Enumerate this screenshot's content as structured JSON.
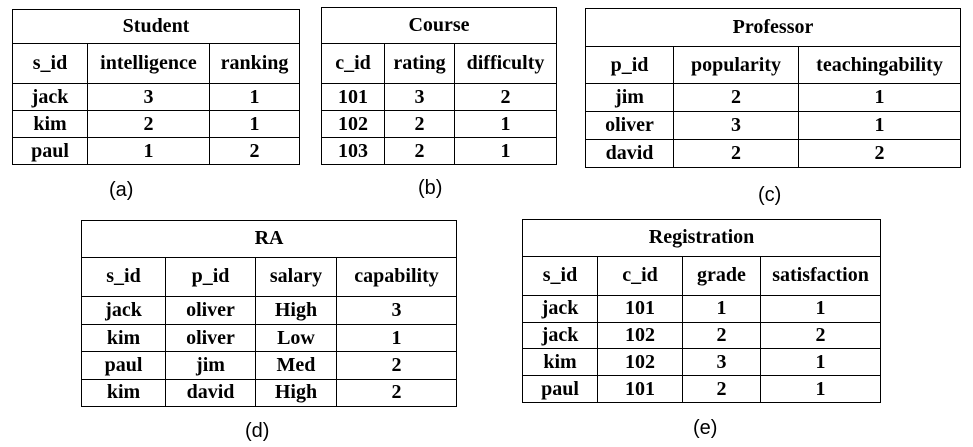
{
  "tables": {
    "student": {
      "title": "Student",
      "headers": [
        "s_id",
        "intelligence",
        "ranking"
      ],
      "rows": [
        [
          "jack",
          "3",
          "1"
        ],
        [
          "kim",
          "2",
          "1"
        ],
        [
          "paul",
          "1",
          "2"
        ]
      ],
      "caption": "(a)"
    },
    "course": {
      "title": "Course",
      "headers": [
        "c_id",
        "rating",
        "difficulty"
      ],
      "rows": [
        [
          "101",
          "3",
          "2"
        ],
        [
          "102",
          "2",
          "1"
        ],
        [
          "103",
          "2",
          "1"
        ]
      ],
      "caption": "(b)"
    },
    "professor": {
      "title": "Professor",
      "headers": [
        "p_id",
        "popularity",
        "teachingability"
      ],
      "rows": [
        [
          "jim",
          "2",
          "1"
        ],
        [
          "oliver",
          "3",
          "1"
        ],
        [
          "david",
          "2",
          "2"
        ]
      ],
      "caption": "(c)"
    },
    "ra": {
      "title": "RA",
      "headers": [
        "s_id",
        "p_id",
        "salary",
        "capability"
      ],
      "rows": [
        [
          "jack",
          "oliver",
          "High",
          "3"
        ],
        [
          "kim",
          "oliver",
          "Low",
          "1"
        ],
        [
          "paul",
          "jim",
          "Med",
          "2"
        ],
        [
          "kim",
          "david",
          "High",
          "2"
        ]
      ],
      "caption": "(d)"
    },
    "registration": {
      "title": "Registration",
      "headers": [
        "s_id",
        "c_id",
        "grade",
        "satisfaction"
      ],
      "rows": [
        [
          "jack",
          "101",
          "1",
          "1"
        ],
        [
          "jack",
          "102",
          "2",
          "2"
        ],
        [
          "kim",
          "102",
          "3",
          "1"
        ],
        [
          "paul",
          "101",
          "2",
          "1"
        ]
      ],
      "caption": "(e)"
    }
  }
}
